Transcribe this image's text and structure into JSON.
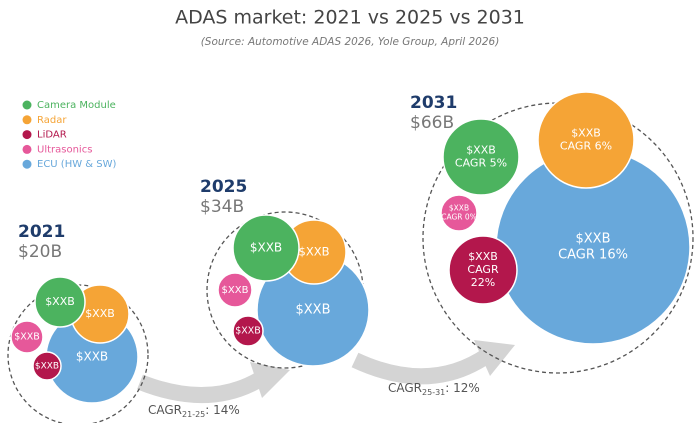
{
  "header": {
    "title": "ADAS market:  2021 vs 2025 vs 2031",
    "subtitle": "(Source: Automotive ADAS 2026, Yole Group, April 2026)"
  },
  "legend": [
    {
      "label": "Camera Module",
      "color": "#4cb35f"
    },
    {
      "label": "Radar",
      "color": "#f5a436"
    },
    {
      "label": "LiDAR",
      "color": "#b3174c"
    },
    {
      "label": "Ultrasonics",
      "color": "#e6589a"
    },
    {
      "label": "ECU (HW & SW)",
      "color": "#68a8db"
    }
  ],
  "groups": [
    {
      "year": "2021",
      "total": "$20B",
      "bubbles": [
        [
          "$XXB"
        ],
        [
          "$XXB"
        ],
        [
          "$XXB"
        ],
        [
          "$XXB"
        ],
        [
          "$XXB"
        ]
      ]
    },
    {
      "year": "2025",
      "total": "$34B",
      "bubbles": [
        [
          "$XXB"
        ],
        [
          "$XXB"
        ],
        [
          "$XXB"
        ],
        [
          "$XXB"
        ],
        [
          "$XXB"
        ]
      ]
    },
    {
      "year": "2031",
      "total": "$66B",
      "bubbles": [
        [
          "$XXB",
          "CAGR 5%"
        ],
        [
          "$XXB",
          "CAGR 6%"
        ],
        [
          "$XXB",
          "CAGR",
          "22%"
        ],
        [
          "$XXB",
          "CAGR 0%"
        ],
        [
          "$XXB",
          "CAGR 16%"
        ]
      ]
    }
  ],
  "arrows": [
    {
      "label": "CAGR",
      "period": "21-25",
      "value": ": 14%"
    },
    {
      "label": "CAGR",
      "period": "25-31",
      "value": ": 12%"
    }
  ]
}
